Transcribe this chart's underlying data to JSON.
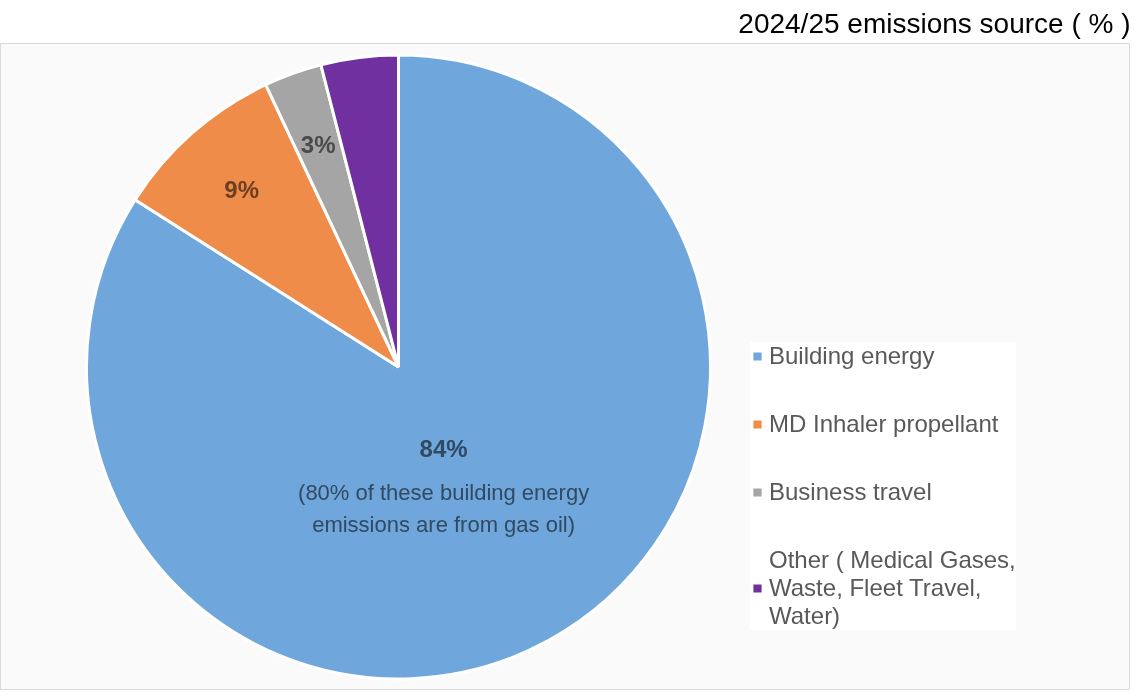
{
  "chart_data": {
    "type": "pie",
    "title": "2024/25 emissions source ( % )",
    "categories": [
      "Building energy",
      "MD Inhaler propellant",
      "Business travel",
      "Other ( Medical Gases, Waste, Fleet Travel, Water)"
    ],
    "values": [
      84,
      9,
      3,
      4
    ],
    "colors": [
      "#6fa6db",
      "#f08c4a",
      "#a5a5a5",
      "#7030a0"
    ],
    "value_labels": [
      "84%",
      "9%",
      "3%",
      null
    ],
    "annotations": [
      "(80% of these building energy emissions are from gas oil)"
    ],
    "legend": "right"
  }
}
